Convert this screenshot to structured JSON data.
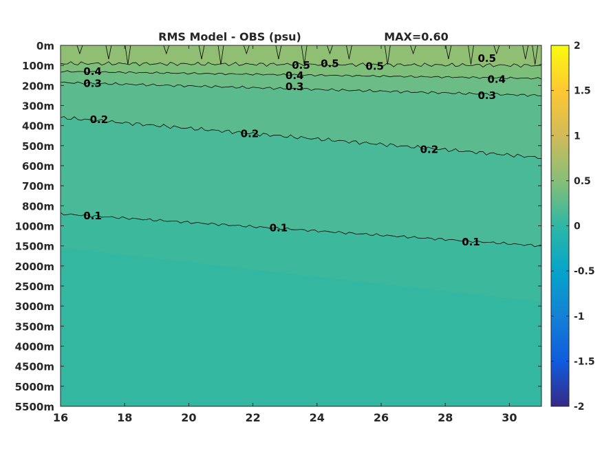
{
  "chart_data": {
    "type": "heatmap",
    "title": "RMS Model - OBS (psu)",
    "max_label": "MAX=0.60",
    "x_ticks": [
      16,
      18,
      20,
      22,
      24,
      26,
      28,
      30
    ],
    "x_range": [
      16,
      31
    ],
    "depth_ticks": [
      "0m",
      "100m",
      "200m",
      "300m",
      "400m",
      "500m",
      "600m",
      "700m",
      "800m",
      "1000m",
      "1500m",
      "2000m",
      "2500m",
      "3000m",
      "3500m",
      "4000m",
      "4500m",
      "5000m",
      "5500m"
    ],
    "colorbar": {
      "range": [
        -2,
        2
      ],
      "ticks": [
        "2",
        "1.5",
        "1",
        "0.5",
        "0",
        "-0.5",
        "-1",
        "-1.5",
        "-2"
      ],
      "colormap": "parula"
    },
    "contours": [
      {
        "level": 0.5,
        "label": "0.5",
        "depth_idx_start": 0.9,
        "depth_idx_end": 1.0
      },
      {
        "level": 0.4,
        "label": "0.4",
        "depth_idx_start": 1.3,
        "depth_idx_end": 1.65
      },
      {
        "level": 0.3,
        "label": "0.3",
        "depth_idx_start": 1.85,
        "depth_idx_end": 2.5
      },
      {
        "level": 0.2,
        "label": "0.2",
        "depth_idx_start": 3.6,
        "depth_idx_end": 5.6
      },
      {
        "level": 0.1,
        "label": "0.1",
        "depth_idx_start": 8.4,
        "depth_idx_end": 10.0
      }
    ],
    "contour_label_positions": [
      {
        "label": "0.4",
        "x": 17.0,
        "d": 1.3
      },
      {
        "label": "0.3",
        "x": 17.0,
        "d": 1.9
      },
      {
        "label": "0.2",
        "x": 17.2,
        "d": 3.7
      },
      {
        "label": "0.2",
        "x": 21.9,
        "d": 4.4
      },
      {
        "label": "0.2",
        "x": 27.5,
        "d": 5.2
      },
      {
        "label": "0.1",
        "x": 17.0,
        "d": 8.5
      },
      {
        "label": "0.1",
        "x": 22.8,
        "d": 9.1
      },
      {
        "label": "0.1",
        "x": 28.8,
        "d": 9.8
      },
      {
        "label": "0.4",
        "x": 23.3,
        "d": 1.5
      },
      {
        "label": "0.3",
        "x": 23.3,
        "d": 2.05
      },
      {
        "label": "0.3",
        "x": 29.3,
        "d": 2.5
      },
      {
        "label": "0.4",
        "x": 29.6,
        "d": 1.7
      },
      {
        "label": "0.5",
        "x": 25.8,
        "d": 1.05
      },
      {
        "label": "0.5",
        "x": 29.3,
        "d": 0.65
      },
      {
        "label": "0.5",
        "x": 23.5,
        "d": 1.0
      },
      {
        "label": "0.5",
        "x": 24.4,
        "d": 0.9
      }
    ]
  }
}
